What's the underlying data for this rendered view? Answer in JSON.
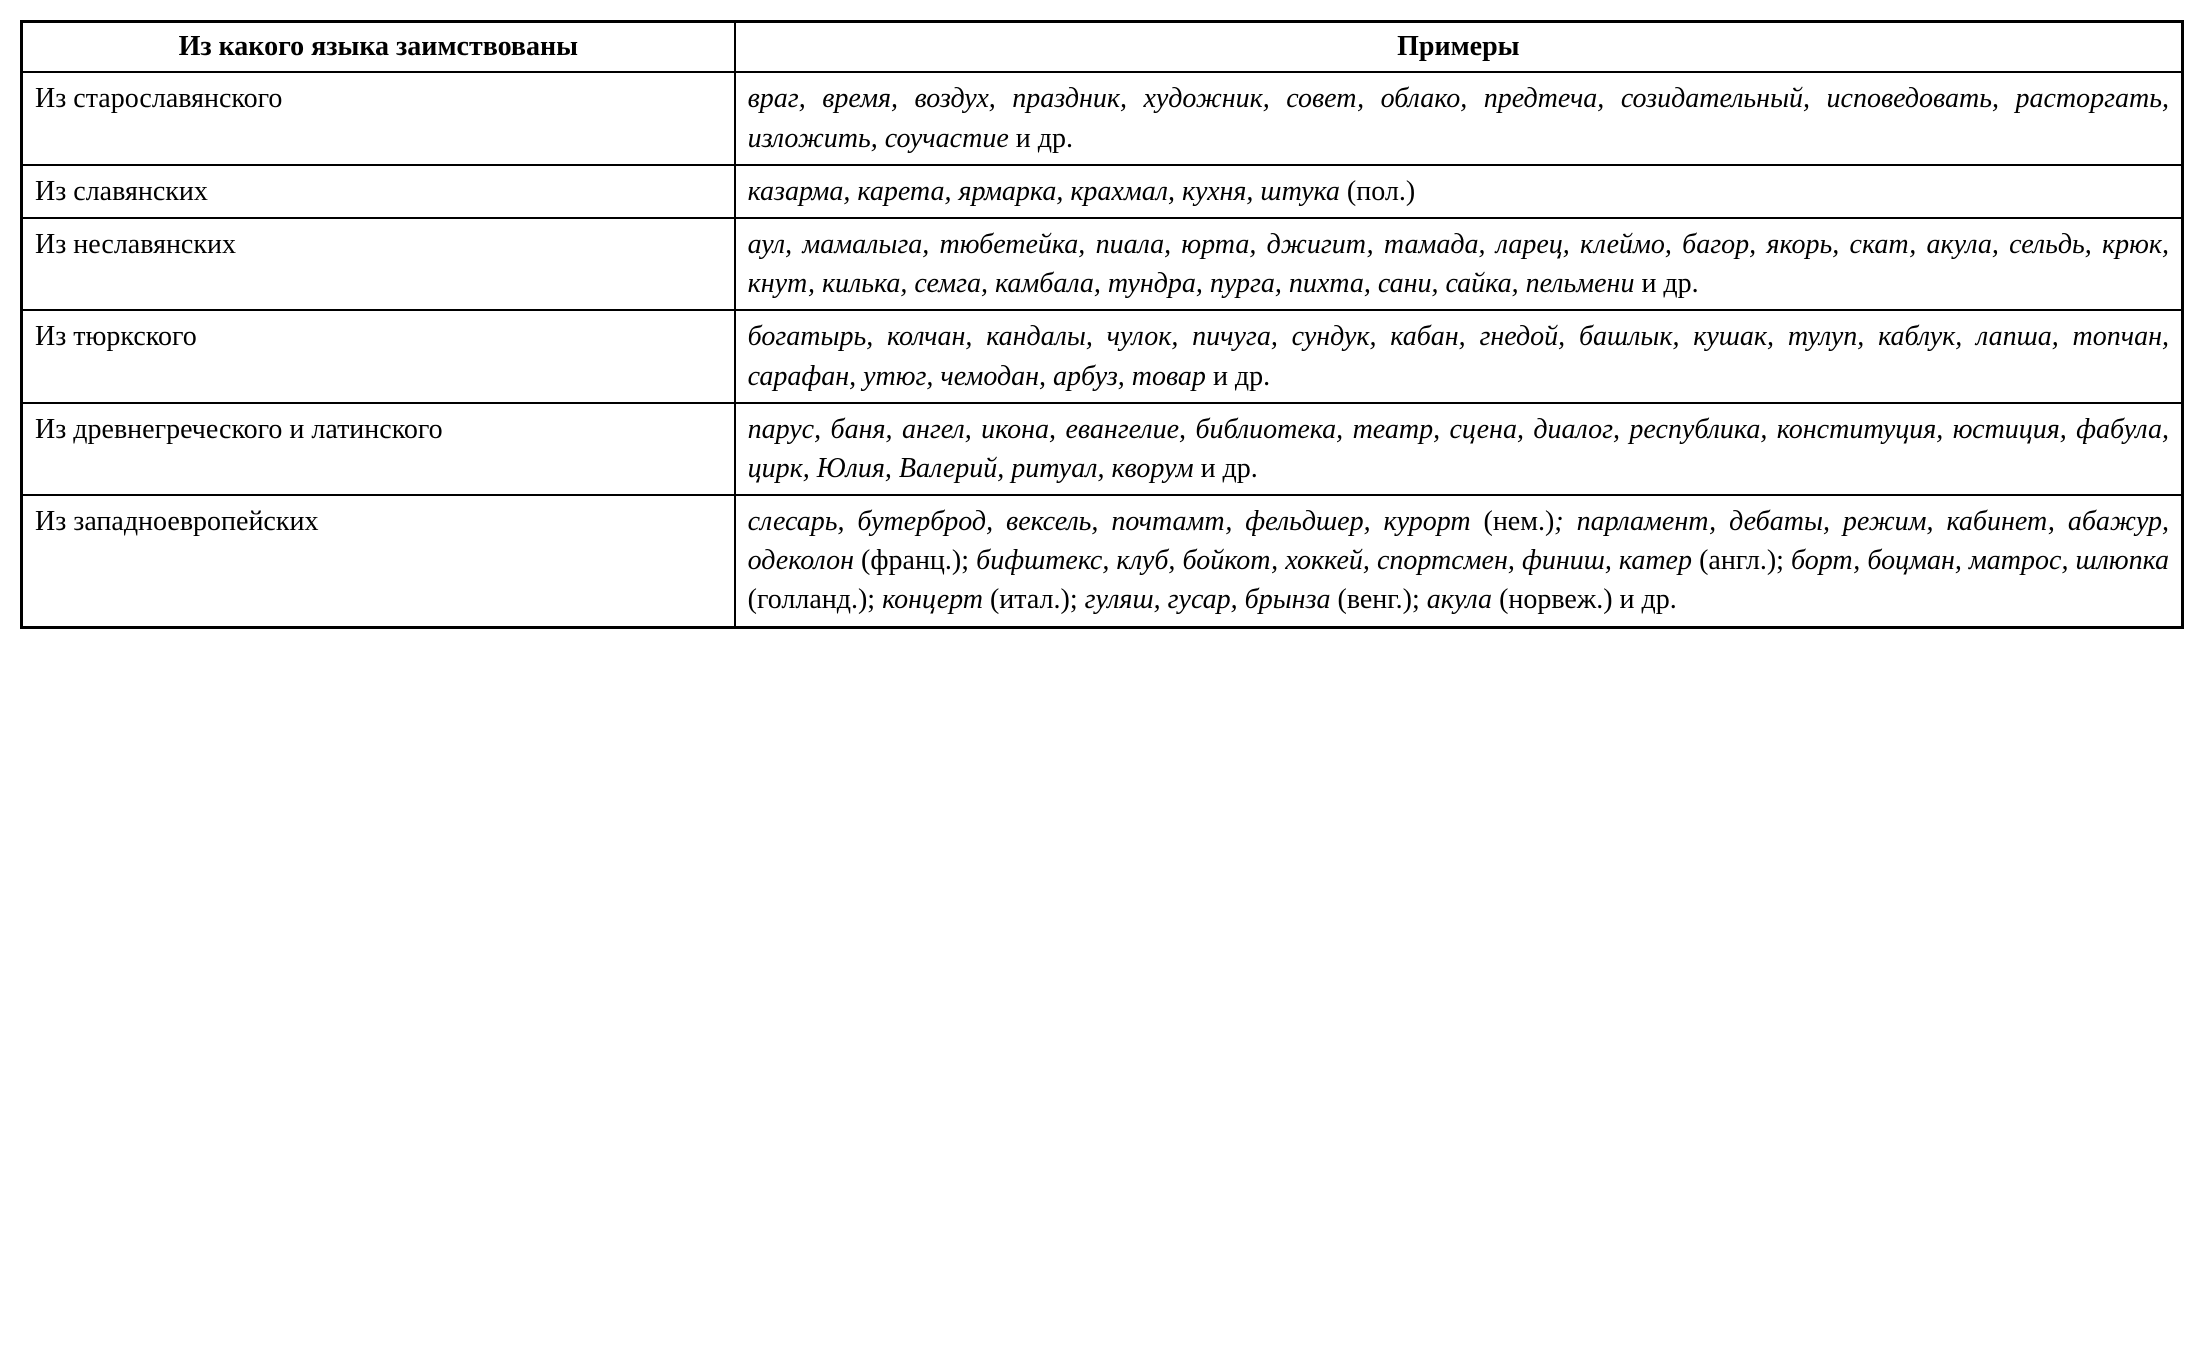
{
  "table": {
    "header": {
      "col1": "Из какого языка заимствованы",
      "col2": "Примеры"
    },
    "rows": [
      {
        "source": "Из старославянского",
        "examples_italic": "враг, время, воздух, праздник, художник, совет, облако, предтеча, созидательный, исповедовать, расторгать, изложить, соучастие",
        "examples_suffix": " и др."
      },
      {
        "source": "Из славянских",
        "examples_italic": "казарма, карета, ярмарка, крахмал, кухня, штука",
        "examples_suffix": " (пол.)"
      },
      {
        "source": "Из неславянских",
        "examples_italic": "аул, мамалыга, тюбетейка, пиала, юрта, джигит, тамада, ларец, клеймо, багор, якорь, скат, акула, сельдь, крюк, кнут, килька, семга, камбала, тундра, пурга, пихта, сани, сайка, пельмени",
        "examples_suffix": " и др."
      },
      {
        "source": "Из тюркского",
        "examples_italic": "богатырь, колчан, кандалы, чулок, пичуга, сундук, кабан, гнедой, башлык, кушак, тулуп, каблук, лапша, топчан, сарафан, утюг, чемодан, арбуз, товар",
        "examples_suffix": " и др."
      },
      {
        "source": "Из древнегреческого и латинского",
        "examples_italic": "парус, баня, ангел, икона, евангелие, библиотека, театр, сцена, диалог, республика, конституция, юстиция, фабула, цирк, Юлия, Валерий, ритуал, кворум",
        "examples_suffix": " и др."
      },
      {
        "source": "Из западноевропейских",
        "segments": [
          {
            "text": "слесарь, бутерброд, вексель, почтамт, фельдшер, курорт",
            "italic": true
          },
          {
            "text": " (нем.)",
            "italic": false
          },
          {
            "text": "; парламент, дебаты, режим, кабинет, абажур, одеколон",
            "italic": true
          },
          {
            "text": " (франц.); ",
            "italic": false
          },
          {
            "text": "бифштекс, клуб, бойкот, хоккей, спортсмен, финиш, катер",
            "italic": true
          },
          {
            "text": " (англ.); ",
            "italic": false
          },
          {
            "text": "борт, боцман, матрос, шлюпка",
            "italic": true
          },
          {
            "text": " (голланд.); ",
            "italic": false
          },
          {
            "text": "концерт",
            "italic": true
          },
          {
            "text": " (итал.); ",
            "italic": false
          },
          {
            "text": "гуляш, гусар, брынза",
            "italic": true
          },
          {
            "text": " (венг.); ",
            "italic": false
          },
          {
            "text": "акула",
            "italic": true
          },
          {
            "text": " (норвеж.) и др.",
            "italic": false
          }
        ]
      }
    ],
    "styling": {
      "border_color": "#000000",
      "border_width_outer": 3,
      "border_width_inner": 2,
      "background_color": "#ffffff",
      "text_color": "#000000",
      "font_family": "Times New Roman",
      "header_fontsize": 28,
      "cell_fontsize": 28,
      "col1_width_percent": 33,
      "col2_width_percent": 67
    }
  }
}
